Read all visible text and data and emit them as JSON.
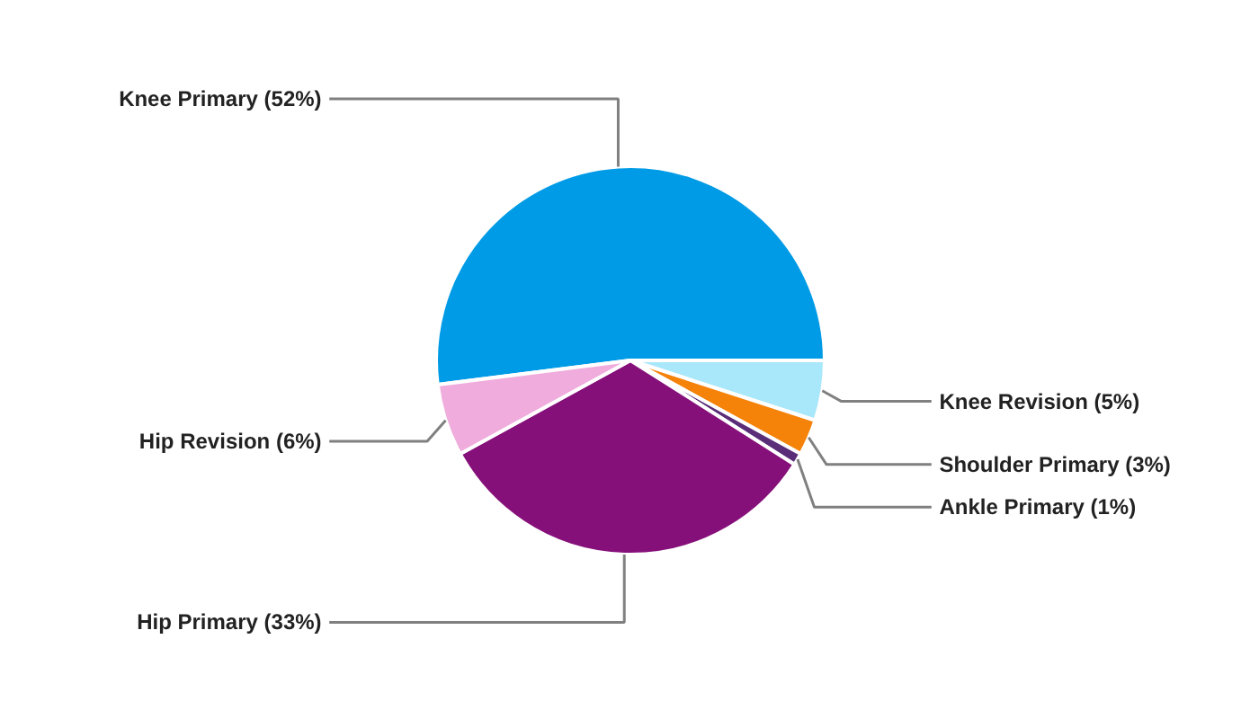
{
  "chart_data": {
    "type": "pie",
    "categories": [
      "Knee Primary",
      "Knee Revision",
      "Shoulder Primary",
      "Ankle Primary",
      "Hip Primary",
      "Hip Revision"
    ],
    "values": [
      52,
      5,
      3,
      1,
      33,
      6
    ],
    "colors": [
      "#009be6",
      "#a9e7fb",
      "#f58209",
      "#5a2d78",
      "#86107a",
      "#f0acdc"
    ],
    "value_labels": [
      "(52%)",
      "(5%)",
      "(3%)",
      "(1%)",
      "(33%)",
      "(6%)"
    ]
  }
}
